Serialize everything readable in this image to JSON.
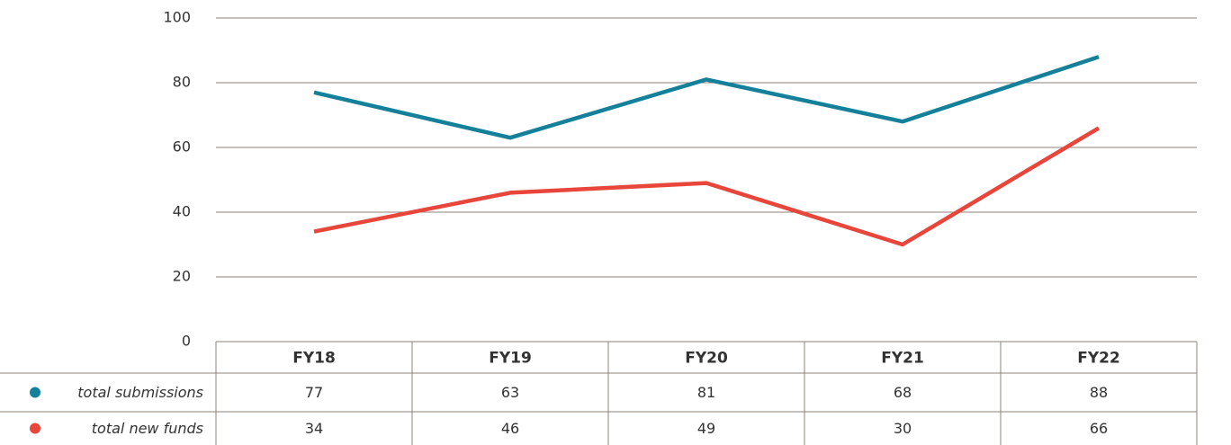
{
  "chart_data": {
    "type": "line",
    "categories": [
      "FY18",
      "FY19",
      "FY20",
      "FY21",
      "FY22"
    ],
    "series": [
      {
        "name": "total submissions",
        "color": "#15809a",
        "values": [
          77,
          63,
          81,
          68,
          88
        ]
      },
      {
        "name": "total new funds",
        "color": "#e8453b",
        "values": [
          34,
          46,
          49,
          30,
          66
        ]
      }
    ],
    "ylim": [
      0,
      100
    ],
    "yticks": [
      0,
      20,
      40,
      60,
      80,
      100
    ],
    "grid": true
  }
}
